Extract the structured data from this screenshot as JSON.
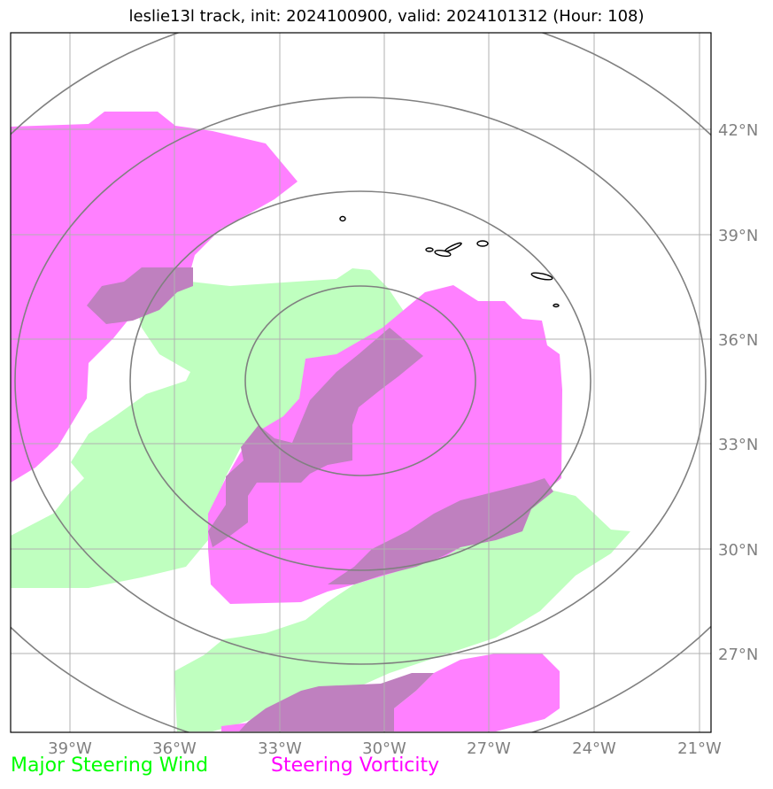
{
  "title": "leslie13l track, init: 2024100900, valid: 2024101312 (Hour: 108)",
  "x_ticks": [
    "39°W",
    "36°W",
    "33°W",
    "30°W",
    "27°W",
    "24°W",
    "21°W"
  ],
  "y_ticks": [
    "42°N",
    "39°N",
    "36°N",
    "33°N",
    "30°N",
    "27°N"
  ],
  "legend": {
    "wind_label": "Major Steering Wind",
    "vorticity_label": "Steering Vorticity"
  },
  "colors": {
    "wind": "#00ff00",
    "vorticity": "#ff00ff",
    "wind_fill": "#bfffbf",
    "vorticity_fill": "#ff80ff",
    "overlap_fill": "#bf80bf",
    "gridline": "#b0b0b0",
    "range_ring": "#808080"
  }
}
